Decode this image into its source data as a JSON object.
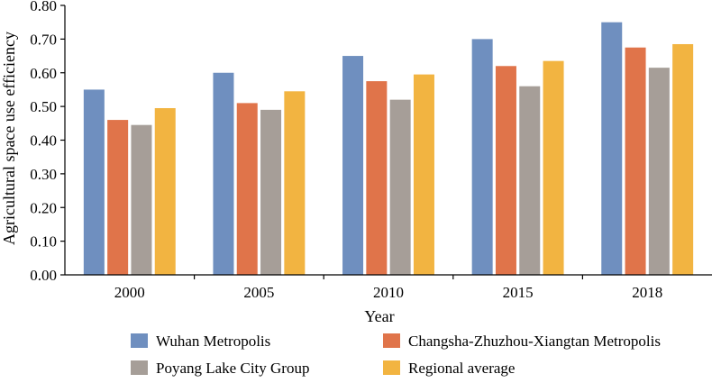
{
  "chart_data": {
    "type": "bar",
    "categories": [
      "2000",
      "2005",
      "2010",
      "2015",
      "2018"
    ],
    "series": [
      {
        "name": "Wuhan Metropolis",
        "color": "#6f8fbf",
        "values": [
          0.55,
          0.6,
          0.65,
          0.7,
          0.75
        ]
      },
      {
        "name": "Changsha-Zhuzhou-Xiangtan Metropolis",
        "color": "#e0744a",
        "values": [
          0.46,
          0.51,
          0.575,
          0.62,
          0.675
        ]
      },
      {
        "name": "Poyang Lake City Group",
        "color": "#a69e98",
        "values": [
          0.445,
          0.49,
          0.52,
          0.56,
          0.615
        ]
      },
      {
        "name": "Regional average",
        "color": "#f2b441",
        "values": [
          0.495,
          0.545,
          0.595,
          0.635,
          0.685
        ]
      }
    ],
    "title": "",
    "xlabel": "Year",
    "ylabel": "Agricultural space use efficiency",
    "ylim": [
      0,
      0.8
    ],
    "yticks": [
      "0.00",
      "0.10",
      "0.20",
      "0.30",
      "0.40",
      "0.50",
      "0.60",
      "0.70",
      "0.80"
    ],
    "grid": false,
    "legend": "bottom"
  }
}
